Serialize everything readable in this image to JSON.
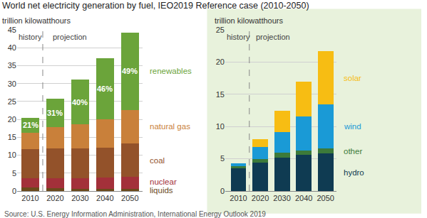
{
  "title": "World net electricity generation by fuel, IEO2019 Reference case (2010-2050)",
  "source": "Source: U.S. Energy Information Administration, International Energy Outlook 2019",
  "chart_data": [
    {
      "type": "bar",
      "stacked": true,
      "grid": true,
      "ylabel": "trillion kilowatthours",
      "annotations": [
        "history",
        "projection"
      ],
      "categories": [
        "2010",
        "2020",
        "2030",
        "2040",
        "2050"
      ],
      "ylim": [
        0,
        45
      ],
      "yticks": [
        0,
        5,
        10,
        15,
        20,
        25,
        30,
        35,
        40,
        45
      ],
      "series": [
        {
          "name": "liquids",
          "color": "#6b4a1c",
          "values": [
            1.0,
            0.8,
            0.6,
            0.5,
            0.5
          ]
        },
        {
          "name": "nuclear",
          "color": "#a3303a",
          "values": [
            2.6,
            2.8,
            3.0,
            3.2,
            3.4
          ]
        },
        {
          "name": "coal",
          "color": "#93522a",
          "values": [
            8.0,
            8.2,
            8.3,
            8.3,
            9.4
          ]
        },
        {
          "name": "natural gas",
          "color": "#c9803a",
          "values": [
            4.6,
            6.0,
            6.7,
            8.0,
            9.3
          ]
        },
        {
          "name": "renewables",
          "color": "#6ba43a",
          "values": [
            4.3,
            8.0,
            12.5,
            17.0,
            21.7
          ],
          "share_labels": [
            "21%",
            "31%",
            "40%",
            "46%",
            "49%"
          ]
        }
      ]
    },
    {
      "type": "bar",
      "stacked": true,
      "grid": true,
      "ylabel": "trillion kilowatthours",
      "annotations": [
        "history",
        "projection"
      ],
      "categories": [
        "2010",
        "2020",
        "2030",
        "2040",
        "2050"
      ],
      "ylim": [
        0,
        25
      ],
      "yticks": [
        0,
        5,
        10,
        15,
        20,
        25
      ],
      "series": [
        {
          "name": "hydro",
          "color": "#0f3b52",
          "values": [
            3.5,
            4.4,
            5.2,
            5.6,
            5.8
          ]
        },
        {
          "name": "other",
          "color": "#3c7a3a",
          "values": [
            0.4,
            0.6,
            0.7,
            0.7,
            0.8
          ]
        },
        {
          "name": "wind",
          "color": "#1a9ad6",
          "values": [
            0.35,
            1.8,
            3.2,
            5.3,
            6.8
          ]
        },
        {
          "name": "solar",
          "color": "#f7bd13",
          "values": [
            0.05,
            1.2,
            3.4,
            5.4,
            8.3
          ]
        }
      ]
    }
  ]
}
